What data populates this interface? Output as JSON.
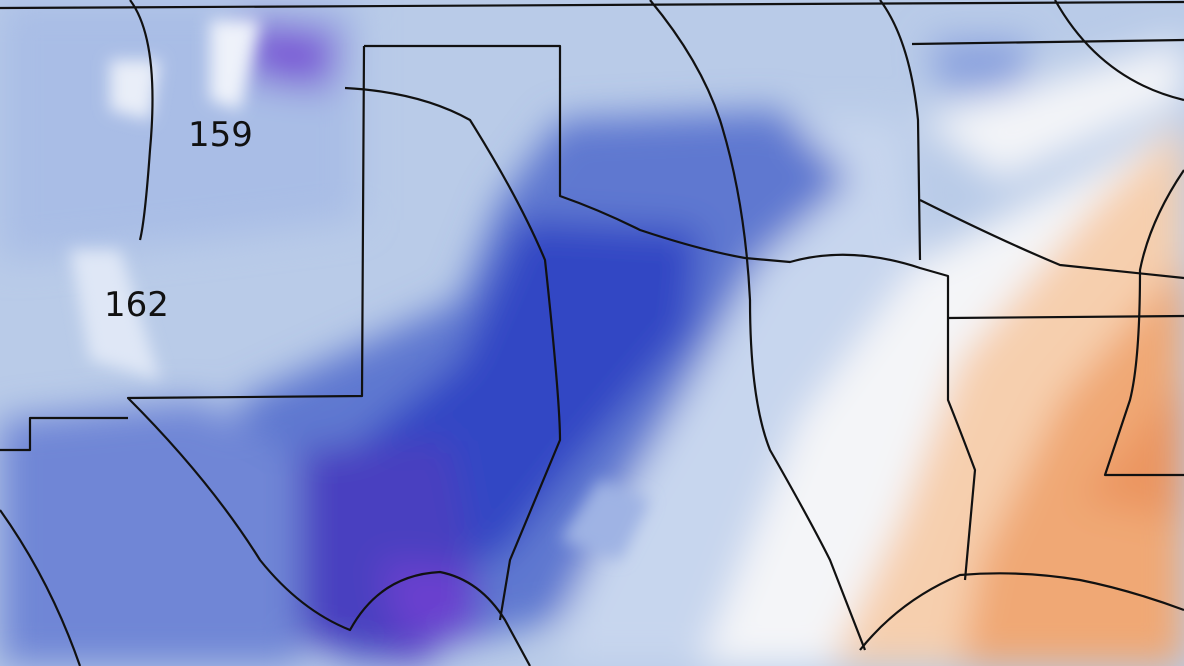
{
  "map": {
    "contour_labels": [
      "159",
      "162"
    ]
  }
}
